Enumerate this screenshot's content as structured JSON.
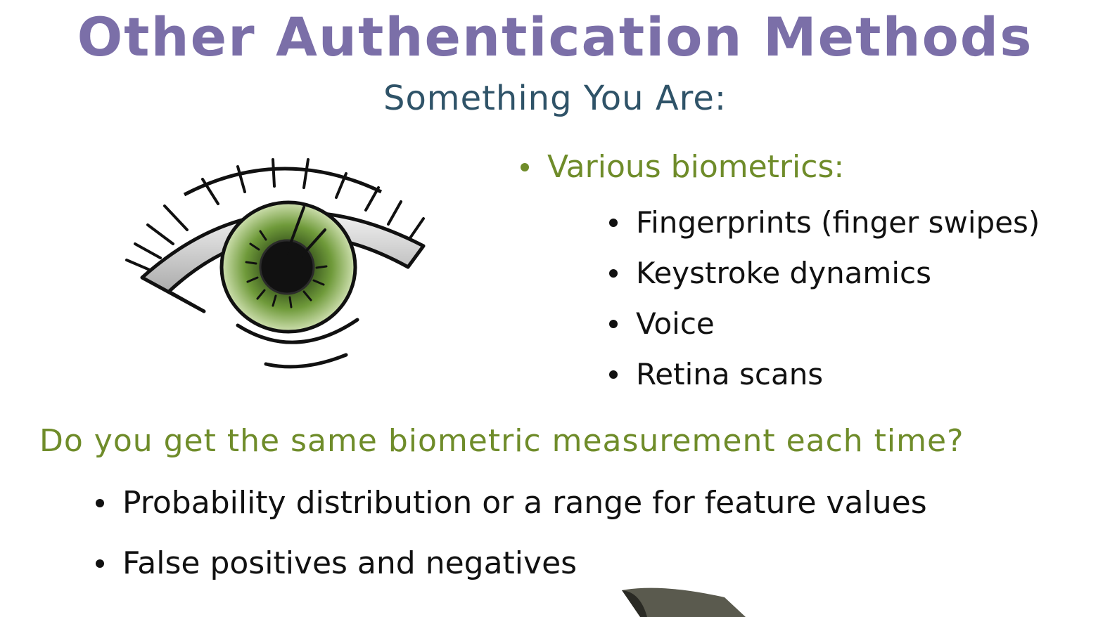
{
  "slide": {
    "title": "Other Authentication Methods",
    "subtitle": "Something You Are:",
    "biometrics": {
      "heading": "Various biometrics:",
      "items": [
        "Fingerprints (finger swipes)",
        "Keystroke dynamics",
        "Voice",
        "Retina scans"
      ]
    },
    "question": "Do you get the same biometric measurement each time?",
    "answers": [
      "Probability distribution or a range for feature values",
      "False positives and negatives"
    ]
  },
  "illustration": {
    "icon": "eye-icon",
    "iris_color": "#6f9a3a"
  },
  "colors": {
    "title": "#7b6fa8",
    "subtitle": "#2f5368",
    "accent_green": "#6f8c2a",
    "text": "#111111"
  }
}
